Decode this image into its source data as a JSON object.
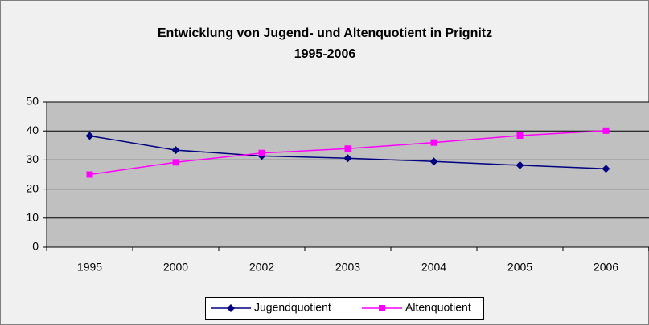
{
  "chart_data": {
    "type": "line",
    "title": "Entwicklung von Jugend- und Altenquotient in Prignitz",
    "subtitle": "1995-2006",
    "categories": [
      "1995",
      "2000",
      "2002",
      "2003",
      "2004",
      "2005",
      "2006"
    ],
    "series": [
      {
        "name": "Jugendquotient",
        "color": "#000080",
        "marker": "diamond",
        "values": [
          38.3,
          33.4,
          31.4,
          30.6,
          29.5,
          28.2,
          27.0
        ]
      },
      {
        "name": "Altenquotient",
        "color": "#ff00ff",
        "marker": "square",
        "values": [
          25.0,
          29.2,
          32.4,
          33.9,
          36.0,
          38.4,
          40.1
        ]
      }
    ],
    "ylim": [
      0,
      50
    ],
    "yticks": [
      0,
      10,
      20,
      30,
      40,
      50
    ],
    "grid": true,
    "legend": "bottom"
  }
}
